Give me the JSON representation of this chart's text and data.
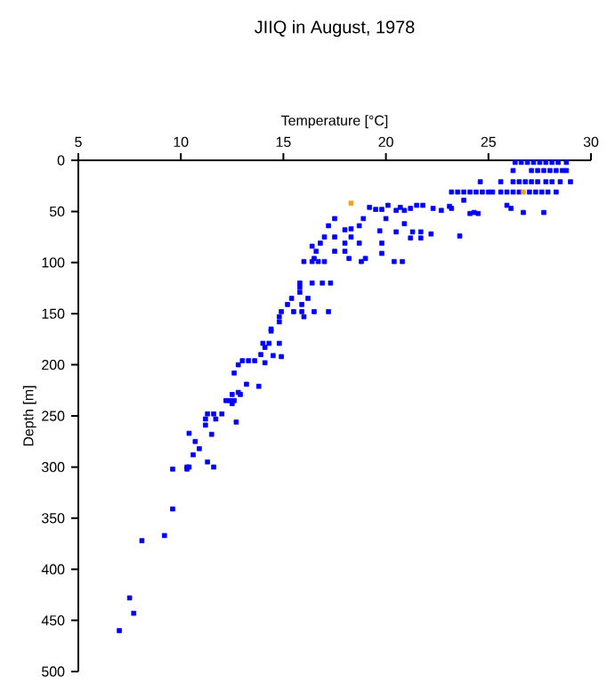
{
  "chart_data": {
    "type": "scatter",
    "title": "JIIQ in August, 1978",
    "xlabel": "Temperature [°C]",
    "ylabel": "Depth [m]",
    "xlim": [
      5,
      30
    ],
    "xticks": [
      5,
      10,
      15,
      20,
      25,
      30
    ],
    "ylim": [
      500,
      0
    ],
    "yticks": [
      0,
      50,
      100,
      150,
      200,
      250,
      300,
      350,
      400,
      450,
      500
    ],
    "marker": "square",
    "series": [
      {
        "color": "#0000ff",
        "x": [
          26.3,
          26.6,
          26.9,
          27.2,
          27.5,
          27.8,
          28.1,
          28.4,
          28.8,
          26.2,
          27.1,
          27.4,
          27.7,
          28.0,
          28.3,
          28.6,
          28.8,
          24.6,
          25.6,
          26.2,
          26.5,
          26.8,
          27.1,
          27.4,
          27.8,
          28.1,
          28.5,
          29.0,
          23.2,
          23.5,
          23.8,
          24.1,
          24.4,
          24.7,
          25.0,
          25.2,
          25.6,
          25.9,
          26.2,
          26.5,
          27.0,
          27.3,
          27.6,
          27.9,
          28.3,
          23.8,
          25.9,
          26.1,
          26.7,
          27.7,
          19.2,
          19.5,
          19.8,
          20.1,
          20.5,
          20.7,
          20.9,
          21.2,
          21.5,
          21.8,
          22.3,
          22.7,
          23.1,
          23.2,
          24.1,
          24.3,
          24.5,
          17.5,
          18.9,
          20.0,
          20.9,
          17.2,
          18.7,
          18.0,
          18.3,
          19.7,
          20.5,
          21.3,
          21.7,
          22.2,
          23.6,
          17.0,
          17.5,
          18.3,
          21.2,
          21.7,
          16.8,
          18.0,
          18.7,
          19.8,
          16.4,
          16.6,
          17.5,
          18.0,
          19.8,
          16.5,
          18.2,
          19.0,
          16.0,
          16.4,
          16.7,
          17.0,
          18.8,
          20.4,
          20.8,
          15.8,
          16.4,
          16.9,
          17.3,
          15.8,
          15.8,
          15.4,
          16.2,
          15.2,
          15.9,
          14.9,
          15.5,
          15.9,
          16.5,
          17.2,
          16.0,
          14.8,
          14.8,
          14.4,
          14.4,
          14.0,
          14.3,
          14.8,
          14.1,
          13.9,
          14.5,
          14.9,
          13.0,
          13.3,
          13.6,
          14.1,
          12.8,
          12.6,
          13.2,
          13.8,
          12.8,
          12.5,
          12.9,
          12.2,
          12.4,
          12.6,
          12.5,
          11.3,
          11.6,
          12.0,
          11.7,
          11.2,
          12.7,
          11.2,
          10.4,
          11.5,
          10.7,
          10.9,
          10.6,
          11.3,
          10.3,
          10.4,
          11.6,
          9.6,
          10.3,
          9.6,
          9.2,
          8.1,
          7.5,
          7.7,
          7.0
        ],
        "values": [
          2,
          2,
          2,
          2,
          2,
          2,
          2,
          2,
          2,
          10,
          10,
          10,
          10,
          10,
          10,
          10,
          10,
          21,
          21,
          21,
          21,
          21,
          21,
          21,
          21,
          21,
          21,
          21,
          31,
          31,
          31,
          31,
          31,
          31,
          31,
          31,
          31,
          31,
          31,
          31,
          31,
          31,
          31,
          31,
          31,
          39,
          44,
          47,
          51,
          51,
          46,
          48,
          48,
          44,
          49,
          46,
          49,
          47,
          44,
          44,
          47,
          49,
          45,
          47,
          52,
          51,
          52,
          57,
          57,
          57,
          62,
          64,
          64,
          68,
          67,
          69,
          70,
          70,
          70,
          72,
          74,
          75,
          75,
          75,
          76,
          76,
          81,
          81,
          81,
          81,
          84,
          89,
          89,
          89,
          91,
          96,
          96,
          96,
          99,
          99,
          99,
          99,
          99,
          99,
          99,
          120,
          120,
          120,
          120,
          124,
          129,
          135,
          135,
          141,
          141,
          148,
          148,
          148,
          148,
          148,
          153,
          153,
          158,
          165,
          167,
          179,
          179,
          179,
          183,
          190,
          191,
          192,
          196,
          196,
          196,
          198,
          200,
          208,
          219,
          221,
          227,
          229,
          229,
          235,
          235,
          235,
          238,
          248,
          248,
          248,
          253,
          253,
          256,
          259,
          267,
          268,
          275,
          282,
          288,
          295,
          300,
          300,
          300,
          302,
          302,
          341,
          367,
          372,
          428,
          443,
          460
        ]
      },
      {
        "color": "#f0a020",
        "x": [
          18.3,
          26.7
        ],
        "values": [
          42,
          31
        ]
      }
    ]
  }
}
